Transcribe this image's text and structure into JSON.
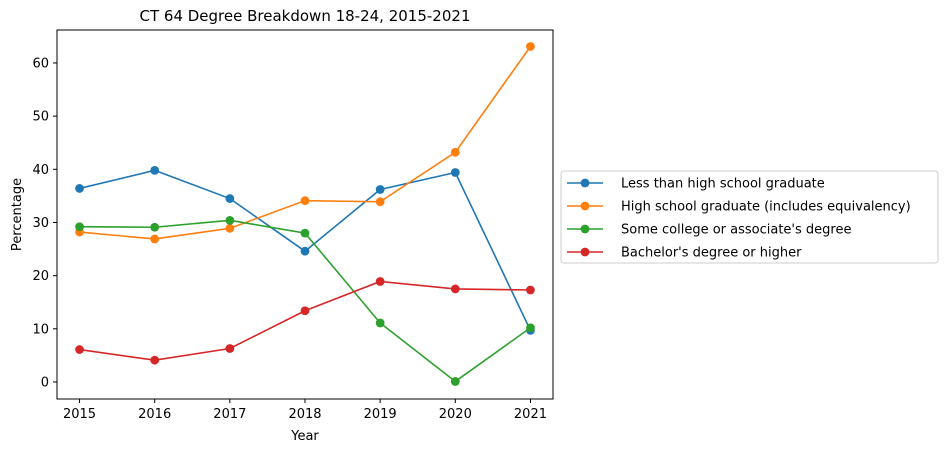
{
  "chart_data": {
    "type": "line",
    "title": "CT 64 Degree Breakdown 18-24, 2015-2021",
    "xlabel": "Year",
    "ylabel": "Percentage",
    "x": [
      2015,
      2016,
      2017,
      2018,
      2019,
      2020,
      2021
    ],
    "xlim": [
      2014.7,
      2021.3
    ],
    "ylim": [
      -3.2,
      66.2
    ],
    "yticks": [
      0,
      10,
      20,
      30,
      40,
      50,
      60
    ],
    "grid": false,
    "legend_position": "center-right, outside plot",
    "series": [
      {
        "name": "Less than high school graduate",
        "color": "#1f77b4",
        "values": [
          36.4,
          39.8,
          34.5,
          24.6,
          36.2,
          39.4,
          9.7
        ]
      },
      {
        "name": "High school graduate (includes equivalency)",
        "color": "#ff7f0e",
        "values": [
          28.2,
          26.9,
          28.9,
          34.1,
          33.9,
          43.2,
          63.1
        ]
      },
      {
        "name": "Some college or associate's degree",
        "color": "#2ca02c",
        "values": [
          29.2,
          29.1,
          30.4,
          28.0,
          11.1,
          0.1,
          10.2
        ]
      },
      {
        "name": "Bachelor's degree or higher",
        "color": "#d62728",
        "values": [
          6.1,
          4.1,
          6.3,
          13.4,
          18.9,
          17.5,
          17.3
        ]
      }
    ]
  }
}
